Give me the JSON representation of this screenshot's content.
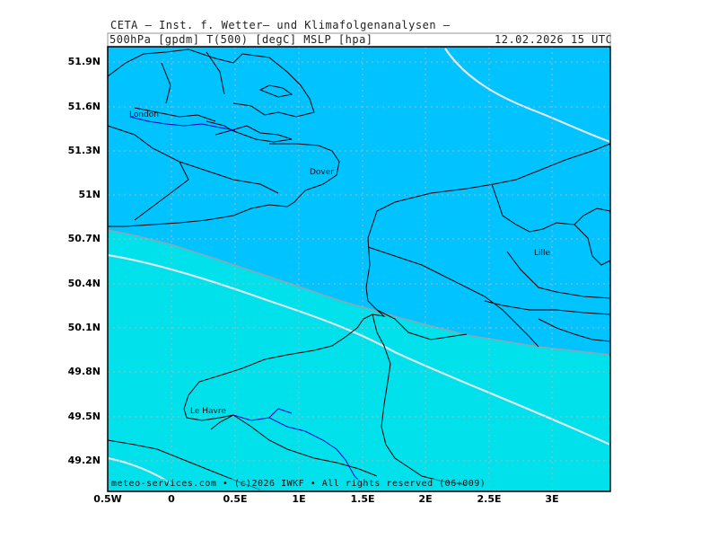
{
  "header": {
    "title": "CETA — Inst. f. Wetter— und Klimafolgenanalysen —",
    "params": "500hPa [gpdm] T(500) [degC] MSLP [hpa]",
    "datetime": "12.02.2026 15 UTC"
  },
  "axes": {
    "lat_labels": [
      "51.9N",
      "51.6N",
      "51.3N",
      "51N",
      "50.7N",
      "50.4N",
      "50.1N",
      "49.8N",
      "49.5N",
      "49.2N"
    ],
    "lon_labels": [
      "0.5W",
      "0",
      "0.5E",
      "1E",
      "1.5E",
      "2E",
      "2.5E",
      "3E"
    ]
  },
  "cities": {
    "london": "London",
    "dover": "Dover",
    "lille": "Lille",
    "le_havre": "Le Havre"
  },
  "footer": {
    "copyright": "meteo-services.com • (c)2026 IWKF • All rights reserved (06+009)"
  },
  "colors": {
    "cold_zone": "#00c3ff",
    "warm_zone": "#00e1ec",
    "contour_white": "#dbe7ee",
    "isotherm_boundary": "#8fa5b2",
    "coastline": "#000000",
    "rivers": "#0000cc",
    "grid": "#b4b4b4"
  }
}
